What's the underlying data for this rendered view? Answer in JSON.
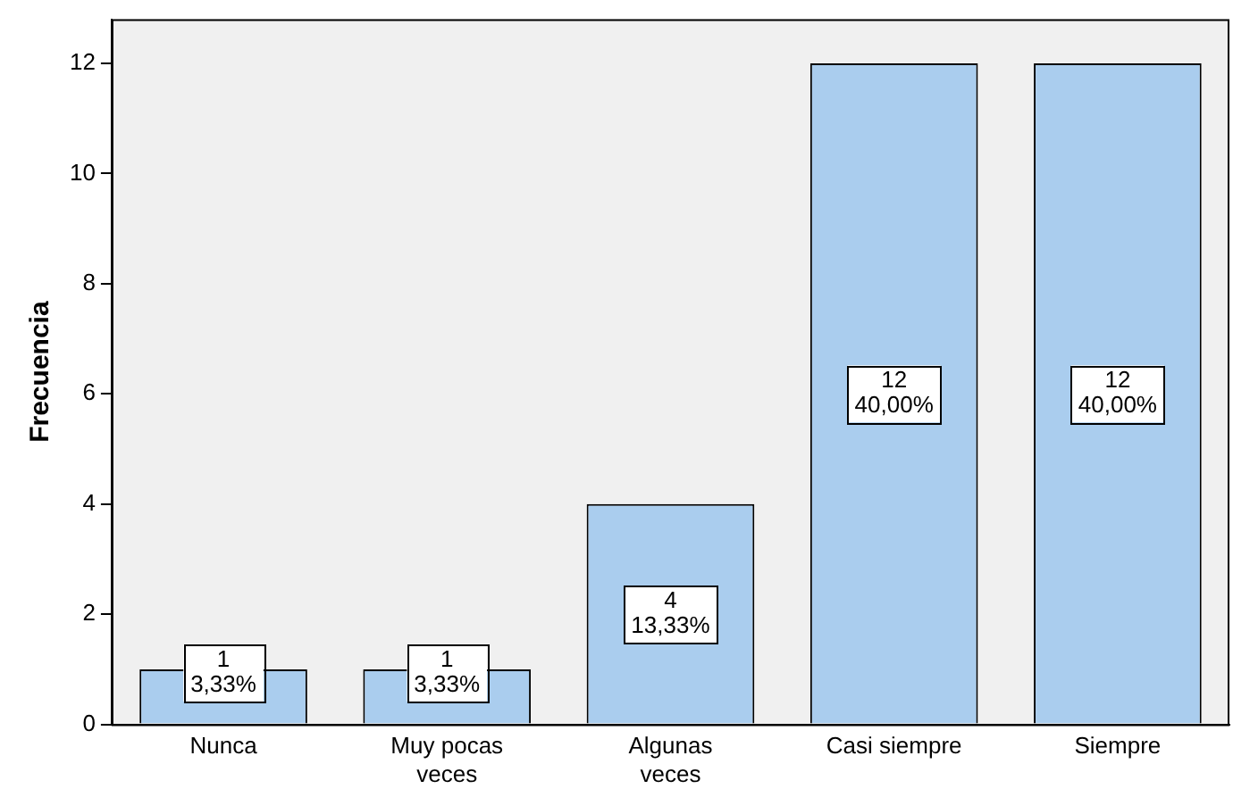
{
  "chart_data": {
    "type": "bar",
    "ylabel": "Frecuencia",
    "categories": [
      "Nunca",
      "Muy pocas veces",
      "Algunas veces",
      "Casi siempre",
      "Siempre"
    ],
    "values": [
      1,
      1,
      4,
      12,
      12
    ],
    "value_labels": [
      "1\n3,33%",
      "1\n3,33%",
      "4\n13,33%",
      "12\n40,00%",
      "12\n40,00%"
    ],
    "color": "#aacdee",
    "ylim": [
      0,
      12.8
    ],
    "yticks": [
      0,
      2,
      4,
      6,
      8,
      10,
      12
    ],
    "grid": false,
    "legend": false
  }
}
